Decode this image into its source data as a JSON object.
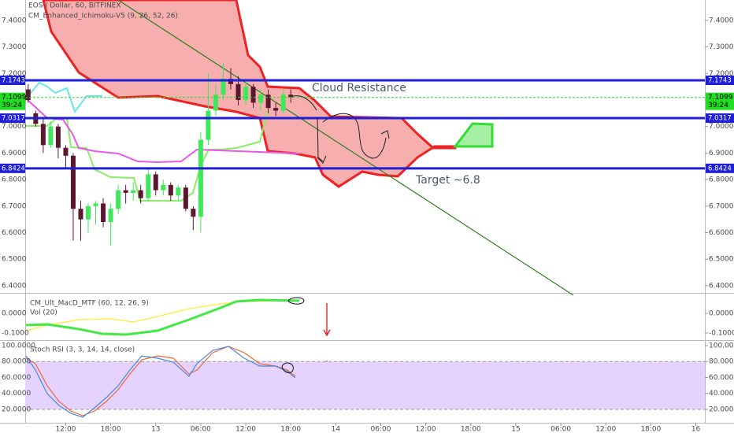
{
  "chart_data": {
    "type": "candlestick",
    "title": "EOS / Dollar, 60, BITFINEX",
    "indicator": "CM_Enhanced_Ichimoku-V5 (9, 26, 52, 26)",
    "x": [
      0,
      1,
      2,
      3,
      4,
      5,
      6,
      7,
      8,
      9,
      10,
      11,
      12,
      13,
      14,
      15,
      16,
      17,
      18,
      19,
      20,
      21,
      22,
      23,
      24,
      25,
      26,
      27,
      28,
      29,
      30,
      31,
      32,
      33,
      34,
      35
    ],
    "open": [
      7.14,
      7.05,
      7.01,
      6.93,
      7.0,
      6.92,
      6.89,
      6.69,
      6.65,
      6.7,
      6.71,
      6.64,
      6.69,
      6.76,
      6.75,
      6.76,
      6.73,
      6.82,
      6.76,
      6.78,
      6.74,
      6.77,
      6.69,
      6.66,
      6.95,
      7.06,
      7.12,
      7.18,
      7.16,
      7.1,
      7.15,
      7.09,
      7.12,
      7.07,
      7.06,
      7.12
    ],
    "high": [
      7.16,
      7.06,
      7.03,
      7.02,
      7.01,
      6.93,
      6.9,
      6.72,
      6.71,
      6.72,
      6.73,
      6.71,
      6.78,
      6.78,
      6.79,
      6.78,
      6.84,
      6.83,
      6.8,
      6.79,
      6.78,
      6.78,
      6.7,
      6.98,
      7.2,
      7.16,
      7.24,
      7.22,
      7.19,
      7.18,
      7.16,
      7.14,
      7.14,
      7.09,
      7.14,
      7.14
    ],
    "low": [
      7.09,
      7.0,
      6.9,
      6.92,
      6.88,
      6.84,
      6.57,
      6.57,
      6.6,
      6.63,
      6.62,
      6.55,
      6.67,
      6.71,
      6.72,
      6.71,
      6.72,
      6.74,
      6.74,
      6.72,
      6.72,
      6.68,
      6.61,
      6.6,
      6.93,
      7.04,
      7.1,
      7.14,
      7.08,
      7.08,
      7.07,
      7.06,
      7.05,
      7.04,
      7.05,
      7.09
    ],
    "close": [
      7.1,
      7.01,
      6.93,
      7.0,
      6.92,
      6.89,
      6.69,
      6.65,
      6.7,
      6.71,
      6.64,
      6.69,
      6.76,
      6.75,
      6.76,
      6.73,
      6.82,
      6.76,
      6.78,
      6.74,
      6.77,
      6.69,
      6.66,
      6.95,
      7.06,
      7.12,
      7.18,
      7.16,
      7.1,
      7.15,
      7.09,
      7.12,
      7.07,
      7.06,
      7.12,
      7.11
    ],
    "up_color": "#3ee85a",
    "down_color": "#5a1730",
    "xlim": [
      -0.4,
      90.2
    ],
    "xticks": [
      {
        "value": 5,
        "label": "12:00"
      },
      {
        "value": 11,
        "label": "18:00"
      },
      {
        "value": 17,
        "label": "13"
      },
      {
        "value": 23,
        "label": "06:00"
      },
      {
        "value": 29,
        "label": "12:00"
      },
      {
        "value": 35,
        "label": "18:00"
      },
      {
        "value": 41,
        "label": "14"
      },
      {
        "value": 47,
        "label": "06:00"
      },
      {
        "value": 53,
        "label": "12:00"
      },
      {
        "value": 59,
        "label": "18:00"
      },
      {
        "value": 65,
        "label": "15"
      },
      {
        "value": 71,
        "label": "06:00"
      },
      {
        "value": 77,
        "label": "12:00"
      },
      {
        "value": 83,
        "label": "18:00"
      },
      {
        "value": 89,
        "label": "16"
      }
    ],
    "ylim": [
      6.373,
      7.477
    ],
    "yticks": [
      {
        "value": 7.4,
        "label": "7.4000"
      },
      {
        "value": 7.3,
        "label": "7.3000"
      },
      {
        "value": 7.2,
        "label": "7.2000"
      },
      {
        "value": 7.1,
        "label": "7.1000"
      },
      {
        "value": 7.0,
        "label": "7.0000"
      },
      {
        "value": 6.9,
        "label": "6.9000"
      },
      {
        "value": 6.8,
        "label": "6.8000"
      },
      {
        "value": 6.7,
        "label": "6.7000"
      },
      {
        "value": 6.6,
        "label": "6.6000"
      },
      {
        "value": 6.5,
        "label": "6.5000"
      },
      {
        "value": 6.4,
        "label": "6.4000"
      }
    ],
    "levels": [
      {
        "value": 7.1743,
        "label": "7.1743",
        "color": "#1f1fd6"
      },
      {
        "value": 7.0317,
        "label": "7.0317",
        "color": "#1f1fd6"
      },
      {
        "value": 6.8424,
        "label": "6.8424",
        "color": "#1f1fd6"
      }
    ],
    "current": {
      "value": 7.1099,
      "label": "7.1099",
      "countdown": "39:24",
      "color": "#22dd22"
    },
    "annotations": [
      "Cloud Resistance",
      "Target ~6.8"
    ]
  },
  "panels": [
    {
      "title": "CM_Ult_MacD_MTF (60, 12, 26, 9)",
      "subtitle": "Vol (20)",
      "ylim": [
        -0.136,
        0.1
      ],
      "yticks": [
        {
          "value": 0,
          "label": "0.0000"
        },
        {
          "value": -0.1,
          "label": "-0.1000"
        }
      ]
    },
    {
      "title": "Stoch RSI (3, 3, 14, 14, close)",
      "ylim": [
        3.2,
        105.9
      ],
      "band": [
        20,
        80
      ],
      "band_color": "#e6d2ff",
      "yticks": [
        {
          "value": 100,
          "label": "100.0000"
        },
        {
          "value": 80,
          "label": "80.0000"
        },
        {
          "value": 60,
          "label": "60.0000"
        },
        {
          "value": 40,
          "label": "40.0000"
        },
        {
          "value": 20,
          "label": "20.0000"
        }
      ]
    }
  ]
}
